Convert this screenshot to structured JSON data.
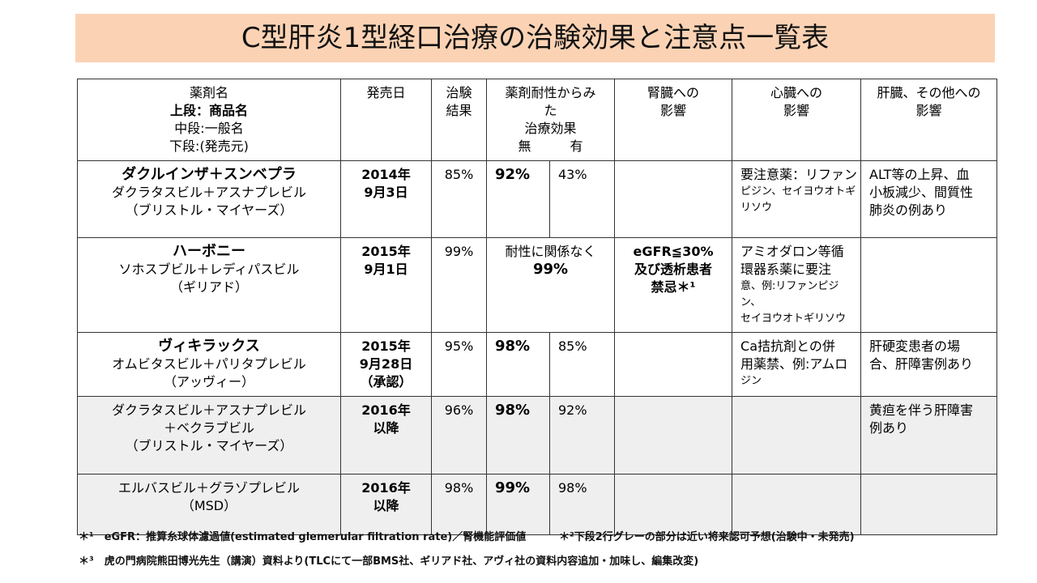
{
  "header": {
    "title": "C型肝炎1型経口治療の治験効果と注意点一覧表"
  },
  "table": {
    "columns": [
      [
        "薬剤名",
        "上段：商品名",
        "中段:一般名",
        "下段:(発売元)"
      ],
      [
        "発売日"
      ],
      [
        "治験",
        "結果"
      ],
      [
        "薬剤耐性からみ",
        "た",
        "治療効果",
        "無　　　有"
      ],
      [
        "腎臓への",
        "影響"
      ],
      [
        "心臓への",
        "影響"
      ],
      [
        "肝臓、その他への",
        "影響"
      ]
    ],
    "rows": [
      {
        "brand": "ダクルインザ＋スンベプラ",
        "generic": [
          "ダクラタスビル＋アスナプレビル"
        ],
        "maker": "（ブリストル・マイヤーズ）",
        "date": [
          "2014年",
          "9月3日"
        ],
        "result": "85%",
        "none": "92%",
        "with": "43%",
        "heart": [
          "要注意薬：リファン",
          "ピジン、セイヨウオトギ",
          "リソウ"
        ],
        "liver": [
          "ALT等の上昇、血",
          "小板減少、間質性",
          "肺炎の例あり"
        ]
      },
      {
        "brand": "ハーボニー",
        "generic": [
          "ソホスブビル＋レディパスビル"
        ],
        "maker": "（ギリアド）",
        "date": [
          "2015年",
          "9月1日"
        ],
        "result": "99%",
        "resistance": [
          "耐性に関係なく",
          "99%"
        ],
        "kidney": [
          "eGFR≦30%",
          "及び透析患者",
          "禁忌＊¹"
        ],
        "heart": [
          "アミオダロン等循",
          "環器系薬に要注",
          "意、例:リファンピジン、",
          "セイヨウオトギリソウ"
        ]
      },
      {
        "brand": "ヴィキラックス",
        "generic": [
          "オムビタスビル＋パリタプレビル"
        ],
        "maker": "（アッヴィー）",
        "date": [
          "2015年",
          "9月28日",
          "（承認）"
        ],
        "result": "95%",
        "none": "98%",
        "with": "85%",
        "heart": [
          "Ca拮抗剤との併",
          "用薬禁、例:アムロ",
          "ジン"
        ],
        "liver": [
          "肝硬変患者の場",
          "合、肝障害例あり"
        ]
      },
      {
        "generic": [
          "ダクラタスビル＋アスナプレビル",
          "＋ベクラブビル"
        ],
        "maker": "（ブリストル・マイヤーズ）",
        "date": [
          "2016年",
          "以降"
        ],
        "result": "96%",
        "none": "98%",
        "with": "92%",
        "liver": [
          "黄疸を伴う肝障害",
          "例あり"
        ]
      },
      {
        "generic": [
          "エルバスビル＋グラゾプレビル"
        ],
        "maker": "（MSD）",
        "date": [
          "2016年",
          "以降"
        ],
        "result": "98%",
        "none": "99%",
        "with": "98%"
      }
    ]
  },
  "footnotes": [
    "＊¹　eGFR：推算糸球体濾過値(estimated glemerular filtration rate)／腎機能評価値",
    "＊²下段2行グレーの部分は近い将来認可予想(治験中・未発売)",
    "＊³　虎の門病院熊田博光先生（講演）資料より(TLCにて一部BMS社、ギリアド社、アヴィ社の資料内容追加・加味し、編集改変)"
  ]
}
